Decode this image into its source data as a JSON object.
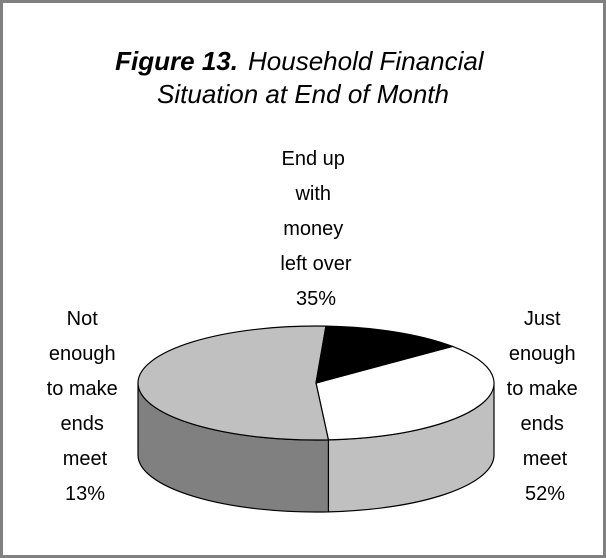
{
  "chart_data": {
    "type": "pie3d",
    "title_label": "Figure 13.",
    "title": "Household Financial Situation at End of Month",
    "categories": [
      "End up with money left over",
      "Just enough to make ends meet",
      "Not enough to make ends meet"
    ],
    "values": [
      35,
      52,
      13
    ],
    "value_labels": [
      "35%",
      "52%",
      "13%"
    ],
    "colors": [
      "#ffffff",
      "#c0c0c0",
      "#000000"
    ],
    "side_colors": [
      "#c0c0c0",
      "#808080",
      "#000000"
    ]
  }
}
